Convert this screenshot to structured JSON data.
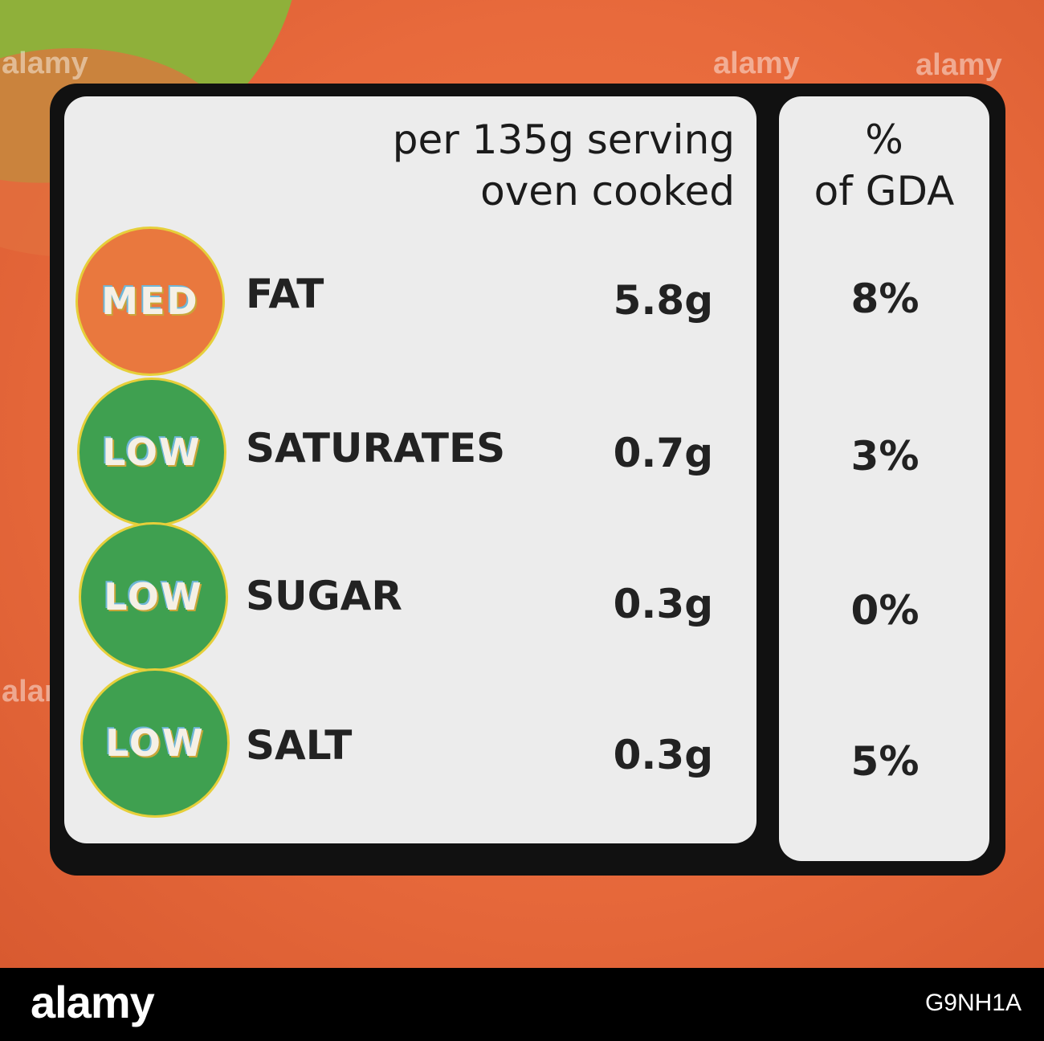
{
  "header": {
    "serving_line1": "per 135g serving",
    "serving_line2": "oven cooked",
    "gda_line1": "%",
    "gda_line2": "of GDA"
  },
  "nutrients": [
    {
      "level": "MED",
      "level_color": "#e9783e",
      "name": "FAT",
      "value": "5.8g",
      "gda": "8%"
    },
    {
      "level": "LOW",
      "level_color": "#3fa050",
      "name": "SATURATES",
      "value": "0.7g",
      "gda": "3%"
    },
    {
      "level": "LOW",
      "level_color": "#3fa050",
      "name": "SUGAR",
      "value": "0.3g",
      "gda": "0%"
    },
    {
      "level": "LOW",
      "level_color": "#3fa050",
      "name": "SALT",
      "value": "0.3g",
      "gda": "5%"
    }
  ],
  "footer": {
    "logo": "alamy",
    "image_code": "G9NH1A"
  },
  "watermark": "alamy"
}
